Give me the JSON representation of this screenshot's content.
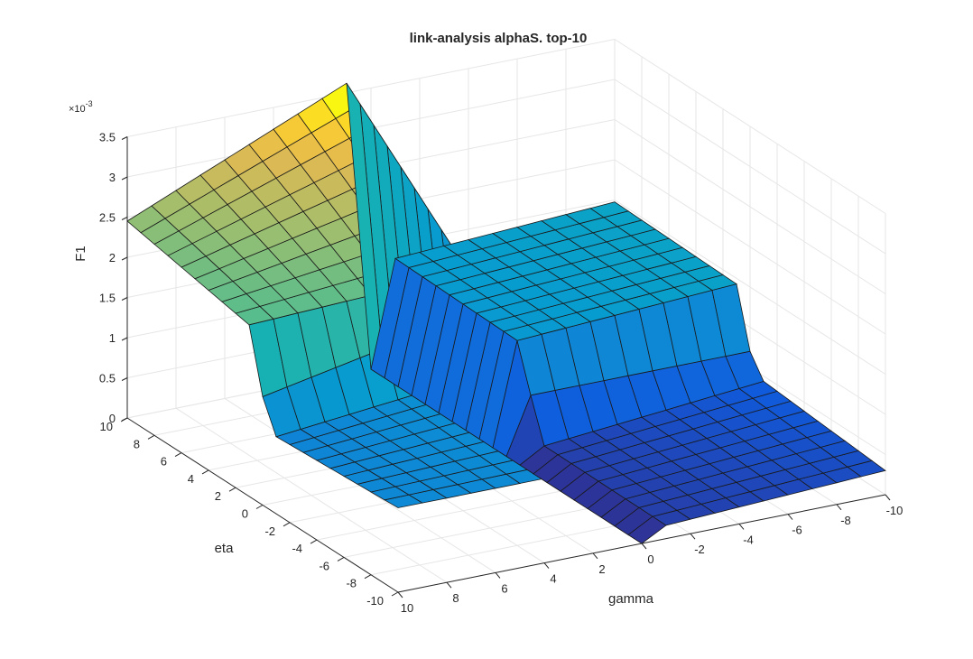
{
  "chart_data": {
    "type": "surface",
    "title": "link-analysis alphaS. top-10",
    "xlabel": "gamma",
    "ylabel": "eta",
    "zlabel": "F1",
    "z_exponent_label": "×10",
    "z_exponent_power": "-3",
    "x_ticks": [
      "10",
      "8",
      "6",
      "4",
      "2",
      "0",
      "-2",
      "-4",
      "-6",
      "-8",
      "-10"
    ],
    "y_ticks": [
      "10",
      "8",
      "6",
      "4",
      "2",
      "0",
      "-2",
      "-4",
      "-6",
      "-8",
      "-10"
    ],
    "z_ticks": [
      "0",
      "0.5",
      "1",
      "1.5",
      "2",
      "2.5",
      "3",
      "3.5"
    ],
    "xlim": [
      -10,
      10
    ],
    "ylim": [
      -10,
      10
    ],
    "zlim": [
      0,
      3.5
    ],
    "z_scale": 0.001,
    "grid": true,
    "colormap": "parula",
    "levels_approx_x1e-3": {
      "high_plateau_eta_gt_0_gamma_gt_0": "approx 2.1 to 3.4",
      "mid_plateau_eta_lt_0_gamma_gt_0": "approx 0.9 to 1.4",
      "low_plateau_gamma_lt_0_eta_gt_0": "approx 1.2 to 1.6",
      "low_plateau_gamma_lt_0_eta_lt_0": "approx 0.1 to 0.5",
      "gamma_0_line": "approx 0"
    }
  }
}
